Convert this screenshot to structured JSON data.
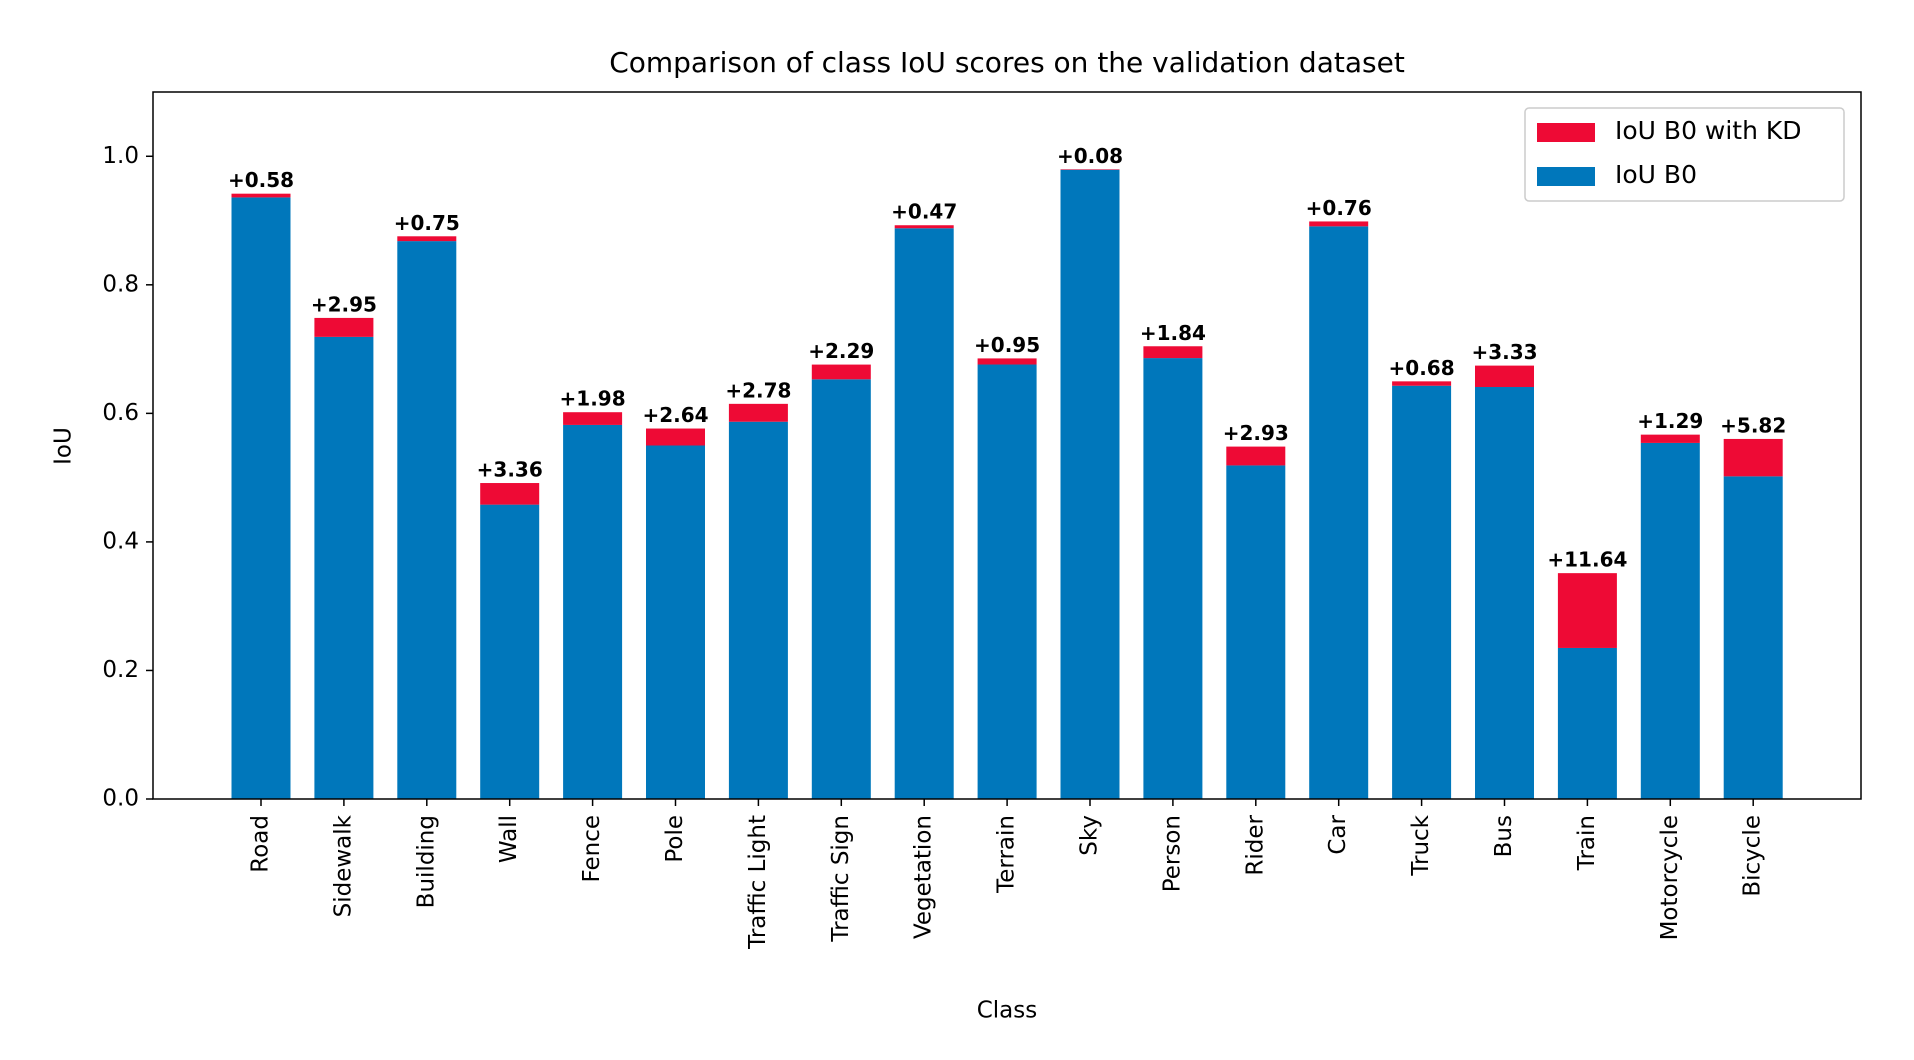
{
  "chart_data": {
    "type": "stacked-bar",
    "title": "Comparison of class IoU scores on the validation dataset",
    "x_label": "Class",
    "y_label": "IoU",
    "categories": [
      "Road",
      "Sidewalk",
      "Building",
      "Wall",
      "Fence",
      "Pole",
      "Traffic Light",
      "Traffic Sign",
      "Vegetation",
      "Terrain",
      "Sky",
      "Person",
      "Rider",
      "Car",
      "Truck",
      "Bus",
      "Train",
      "Motorcycle",
      "Bicycle"
    ],
    "series": [
      {
        "name": "IoU B0",
        "color": "#0077bb",
        "values": [
          0.936,
          0.719,
          0.868,
          0.458,
          0.582,
          0.55,
          0.587,
          0.653,
          0.888,
          0.676,
          0.979,
          0.686,
          0.519,
          0.891,
          0.643,
          0.641,
          0.235,
          0.554,
          0.502
        ]
      },
      {
        "name": "IoU B0 with KD",
        "color": "#ee0a35",
        "values": [
          0.0058,
          0.0295,
          0.0075,
          0.0336,
          0.0198,
          0.0264,
          0.0278,
          0.0229,
          0.0047,
          0.0095,
          0.0008,
          0.0184,
          0.0293,
          0.0076,
          0.0068,
          0.0333,
          0.1164,
          0.0129,
          0.0582
        ],
        "value_labels": [
          "+0.58",
          "+2.95",
          "+0.75",
          "+3.36",
          "+1.98",
          "+2.64",
          "+2.78",
          "+2.29",
          "+0.47",
          "+0.95",
          "+0.08",
          "+1.84",
          "+2.93",
          "+0.76",
          "+0.68",
          "+3.33",
          "+11.64",
          "+1.29",
          "+5.82"
        ]
      }
    ],
    "ylim": [
      0,
      1.1
    ],
    "yticks": [
      {
        "value": 0,
        "label": "0.0"
      },
      0.2,
      0.4,
      0.6,
      0.8,
      {
        "value": 1,
        "label": "1.0"
      }
    ],
    "grid": false,
    "legend": "upper right"
  }
}
